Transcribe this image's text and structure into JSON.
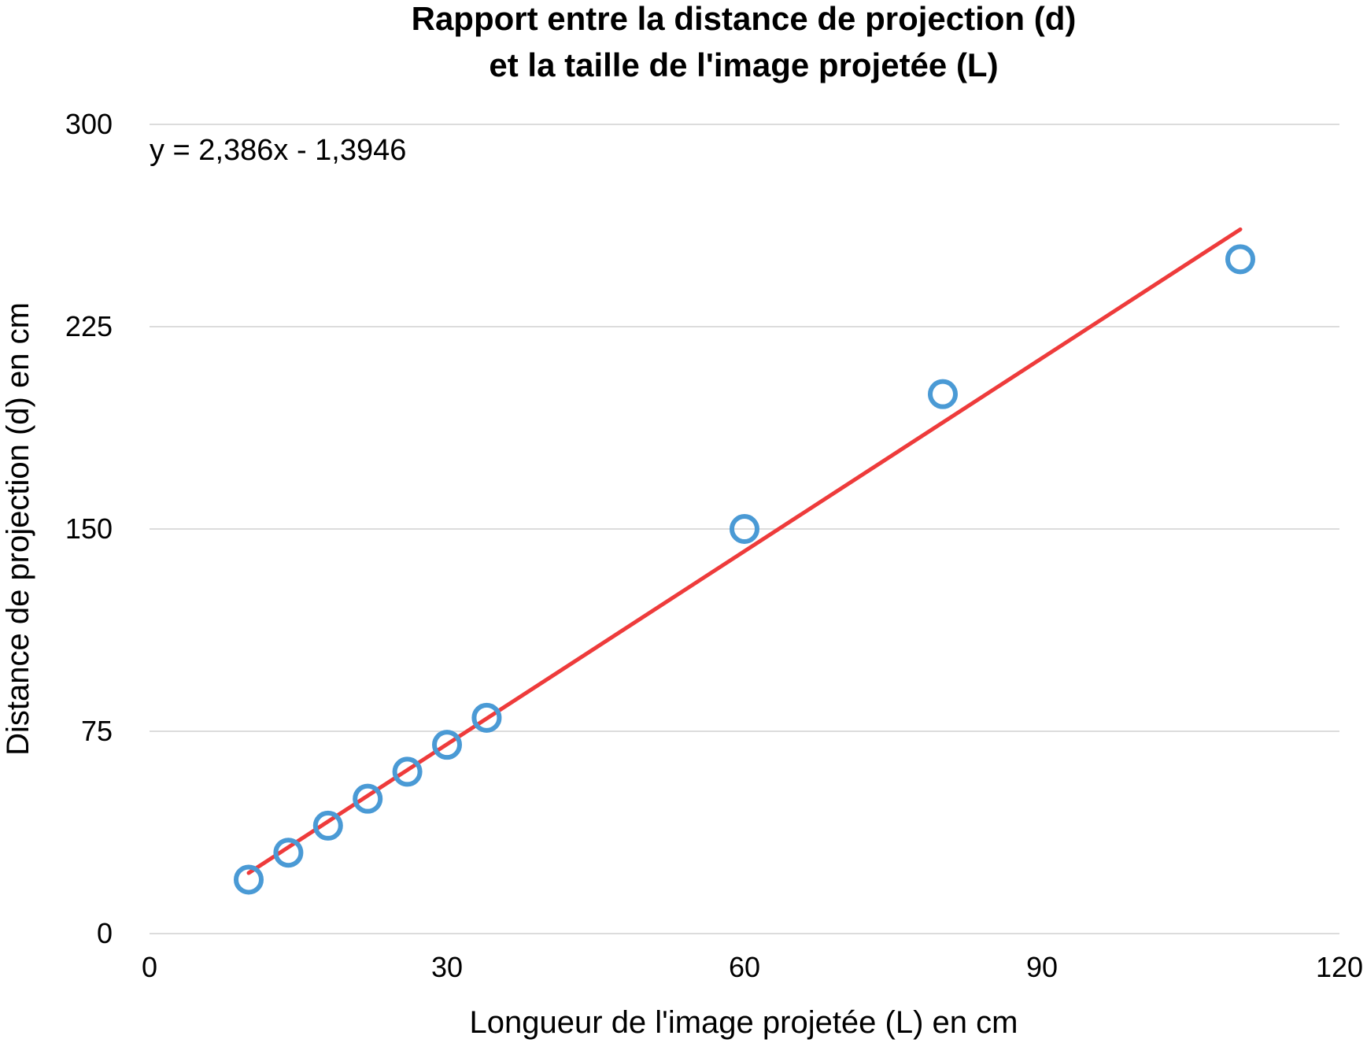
{
  "chart_data": {
    "type": "scatter",
    "title_lines": [
      "Rapport entre la distance de projection (d)",
      "et la taille de l'image projetée (L)"
    ],
    "xlabel": "Longueur de l'image projetée (L) en cm",
    "ylabel": "Distance de projection (d) en cm",
    "xlim": [
      0,
      120
    ],
    "ylim": [
      0,
      300
    ],
    "x_ticks": [
      "0",
      "30",
      "60",
      "90",
      "120"
    ],
    "y_ticks": [
      "0",
      "75",
      "150",
      "225",
      "300"
    ],
    "grid": "horizontal",
    "legend": "none",
    "series": [
      {
        "x": [
          10,
          14,
          18,
          22,
          26,
          30,
          34,
          60,
          80,
          110
        ],
        "y": [
          20,
          30,
          40,
          50,
          60,
          70,
          80,
          150,
          200,
          250
        ],
        "marker": "open-circle",
        "color": "#4a9ad5"
      }
    ],
    "trendline": {
      "equation": "y = 2,386x - 1,3946",
      "slope": 2.386,
      "intercept": -1.3946,
      "x_range": [
        10,
        110
      ],
      "color": "#ee3b3b"
    }
  }
}
